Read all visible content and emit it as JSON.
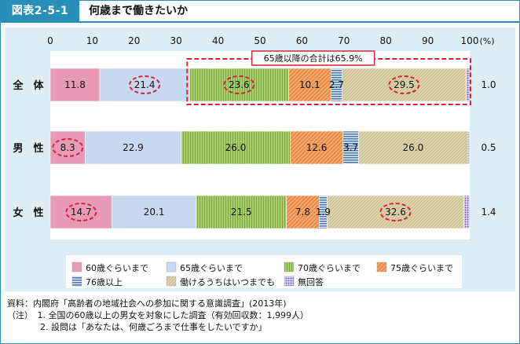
{
  "figure": {
    "id": "図表2-5-1",
    "title": "何歳まで働きたいか"
  },
  "chart_data": {
    "type": "bar",
    "orientation": "horizontal",
    "stacked": true,
    "x_ticks": [
      "0",
      "10",
      "20",
      "30",
      "40",
      "50",
      "60",
      "70",
      "80",
      "90",
      "100"
    ],
    "x_unit": "(%)",
    "xlim": [
      0,
      100
    ],
    "categories": [
      "全　体",
      "男　性",
      "女　性"
    ],
    "series": [
      {
        "name": "60歳ぐらいまで",
        "values": [
          11.8,
          8.3,
          14.7
        ],
        "labels": [
          "11.8",
          "8.3",
          "14.7"
        ],
        "color": "#e89ab6",
        "pattern": "none"
      },
      {
        "name": "65歳ぐらいまで",
        "values": [
          21.4,
          22.9,
          20.1
        ],
        "labels": [
          "21.4",
          "22.9",
          "20.1"
        ],
        "color": "#c8d8ee",
        "pattern": "none"
      },
      {
        "name": "70歳ぐらいまで",
        "values": [
          23.6,
          26.0,
          21.5
        ],
        "labels": [
          "23.6",
          "26.0",
          "21.5"
        ],
        "color": "#a9cf6e",
        "pattern": "vertical-lines"
      },
      {
        "name": "75歳ぐらいまで",
        "values": [
          10.1,
          12.6,
          7.8
        ],
        "labels": [
          "10.1",
          "12.6",
          "7.8"
        ],
        "color": "#f3a76e",
        "pattern": "diagonal-lines"
      },
      {
        "name": "76歳以上",
        "values": [
          2.7,
          3.7,
          1.9
        ],
        "labels": [
          "2.7",
          "3.7",
          "1.9"
        ],
        "color": "#4a78b8",
        "pattern": "horizontal-lines"
      },
      {
        "name": "働けるうちはいつまでも",
        "values": [
          29.5,
          26.0,
          32.6
        ],
        "labels": [
          "29.5",
          "26.0",
          "32.6"
        ],
        "color": "#ddd3ac",
        "pattern": "fine-diagonal"
      },
      {
        "name": "無回答",
        "values": [
          1.0,
          0.5,
          1.4
        ],
        "labels": [
          "1.0",
          "0.5",
          "1.4"
        ],
        "color": "#8f78bf",
        "pattern": "dots"
      }
    ],
    "callout": "65歳以降の合計は65.9%",
    "highlighted_values": [
      {
        "category": "全　体",
        "series": "65歳ぐらいまで"
      },
      {
        "category": "全　体",
        "series": "70歳ぐらいまで"
      },
      {
        "category": "全　体",
        "series": "働けるうちはいつまでも"
      },
      {
        "category": "男　性",
        "series": "60歳ぐらいまで"
      },
      {
        "category": "女　性",
        "series": "60歳ぐらいまで"
      },
      {
        "category": "女　性",
        "series": "働けるうちはいつまでも"
      }
    ],
    "legend_position": "bottom",
    "grid": false
  },
  "notes": {
    "source": "資料：内閣府「高齢者の地域社会への参加に関する意識調査」(2013年)",
    "note1": "（注）　1.  全国の60歳以上の男女を対象にした調査（有効回収数：1,999人）",
    "note2": "2.  設問は「あなたは、何歳ごろまで仕事をしたいですか」"
  }
}
